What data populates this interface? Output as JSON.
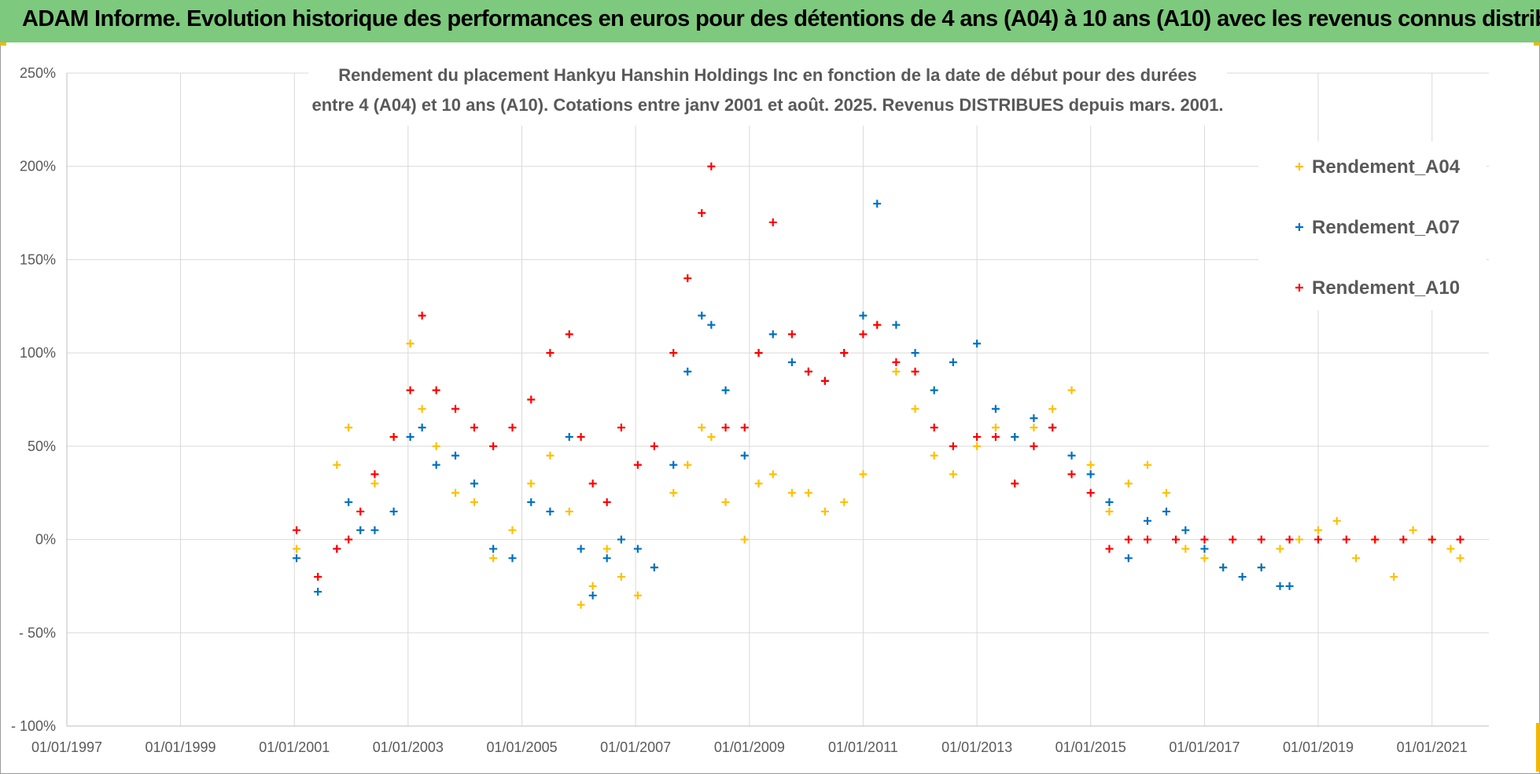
{
  "banner": {
    "title": "ADAM Informe. Evolution historique des performances en euros pour des détentions de 4 ans (A04) à 10 ans (A10) avec les revenus connus distribués"
  },
  "colors": {
    "banner_bg": "#7dc97d",
    "A04": "#ffc000",
    "A07": "#0070c0",
    "A10": "#ff0000",
    "grid": "#d9d9d9",
    "text": "#595959"
  },
  "chart_data": {
    "type": "scatter",
    "title_lines": [
      "Rendement du placement Hankyu Hanshin Holdings Inc en fonction de la date de début pour des durées",
      "entre 4 (A04) et 10 ans (A10). Cotations entre janv 2001 et août. 2025. Revenus DISTRIBUES depuis mars. 2001."
    ],
    "x_axis": {
      "type": "date",
      "range": [
        "1997-01-01",
        "2022-01-01"
      ],
      "tick_labels": [
        "01/01/1997",
        "01/01/1999",
        "01/01/2001",
        "01/01/2003",
        "01/01/2005",
        "01/01/2007",
        "01/01/2009",
        "01/01/2011",
        "01/01/2013",
        "01/01/2015",
        "01/01/2017",
        "01/01/2019",
        "01/01/2021"
      ],
      "tick_dates": [
        "1997-01-01",
        "1999-01-01",
        "2001-01-01",
        "2003-01-01",
        "2005-01-01",
        "2007-01-01",
        "2009-01-01",
        "2011-01-01",
        "2013-01-01",
        "2015-01-01",
        "2017-01-01",
        "2019-01-01",
        "2021-01-01"
      ]
    },
    "y_axis": {
      "unit": "%",
      "range": [
        -100,
        250
      ],
      "tick_values": [
        -100,
        -50,
        0,
        50,
        100,
        150,
        200,
        250
      ],
      "tick_labels": [
        "- 100%",
        "- 50%",
        "0%",
        "50%",
        "100%",
        "150%",
        "200%",
        "250%"
      ]
    },
    "grid": true,
    "marker": "+",
    "legend": {
      "position": "right",
      "entries": [
        "Rendement_A04",
        "Rendement_A07",
        "Rendement_A10"
      ]
    },
    "series": [
      {
        "name": "Rendement_A04",
        "color": "#ffc000",
        "x": [
          "2001-01-15",
          "2001-06-01",
          "2001-10-01",
          "2001-12-15",
          "2002-03-01",
          "2002-06-01",
          "2002-10-01",
          "2003-01-15",
          "2003-04-01",
          "2003-07-01",
          "2003-11-01",
          "2004-03-01",
          "2004-07-01",
          "2004-11-01",
          "2005-03-01",
          "2005-07-01",
          "2005-11-01",
          "2006-01-15",
          "2006-04-01",
          "2006-07-01",
          "2006-10-01",
          "2007-01-15",
          "2007-05-01",
          "2007-09-01",
          "2007-12-01",
          "2008-03-01",
          "2008-05-01",
          "2008-08-01",
          "2008-12-01",
          "2009-03-01",
          "2009-06-01",
          "2009-10-01",
          "2010-01-15",
          "2010-05-01",
          "2010-09-01",
          "2011-01-01",
          "2011-04-01",
          "2011-08-01",
          "2011-12-01",
          "2012-04-01",
          "2012-08-01",
          "2013-01-01",
          "2013-05-01",
          "2013-09-01",
          "2014-01-01",
          "2014-05-01",
          "2014-09-01",
          "2015-01-01",
          "2015-05-01",
          "2015-09-01",
          "2016-01-01",
          "2016-05-01",
          "2016-09-01",
          "2017-01-01",
          "2017-05-01",
          "2017-09-01",
          "2018-01-01",
          "2018-05-01",
          "2018-09-01",
          "2019-01-01",
          "2019-05-01",
          "2019-09-01",
          "2020-01-01",
          "2020-05-01",
          "2020-09-01",
          "2021-01-01",
          "2021-05-01",
          "2021-07-01"
        ],
        "y": [
          -5,
          -20,
          40,
          60,
          5,
          30,
          55,
          105,
          70,
          50,
          25,
          20,
          -10,
          5,
          30,
          45,
          15,
          -35,
          -25,
          -5,
          -20,
          -30,
          -15,
          25,
          40,
          60,
          55,
          20,
          0,
          30,
          35,
          25,
          25,
          15,
          20,
          35,
          115,
          90,
          70,
          45,
          35,
          50,
          60,
          55,
          60,
          70,
          80,
          40,
          15,
          30,
          40,
          25,
          -5,
          -10,
          -15,
          -20,
          -15,
          -5,
          0,
          5,
          10,
          -10,
          0,
          -20,
          5,
          0,
          -5,
          -10
        ]
      },
      {
        "name": "Rendement_A07",
        "color": "#0070c0",
        "x": [
          "2001-01-15",
          "2001-06-01",
          "2001-10-01",
          "2001-12-15",
          "2002-03-01",
          "2002-06-01",
          "2002-10-01",
          "2003-01-15",
          "2003-04-01",
          "2003-07-01",
          "2003-11-01",
          "2004-03-01",
          "2004-07-01",
          "2004-11-01",
          "2005-03-01",
          "2005-07-01",
          "2005-11-01",
          "2006-01-15",
          "2006-04-01",
          "2006-07-01",
          "2006-10-01",
          "2007-01-15",
          "2007-05-01",
          "2007-09-01",
          "2007-12-01",
          "2008-03-01",
          "2008-05-01",
          "2008-08-01",
          "2008-12-01",
          "2009-03-01",
          "2009-06-01",
          "2009-10-01",
          "2010-01-15",
          "2010-05-01",
          "2010-09-01",
          "2011-01-01",
          "2011-04-01",
          "2011-08-01",
          "2011-12-01",
          "2012-04-01",
          "2012-08-01",
          "2013-01-01",
          "2013-05-01",
          "2013-09-01",
          "2014-01-01",
          "2014-05-01",
          "2014-09-01",
          "2015-01-01",
          "2015-05-01",
          "2015-09-01",
          "2016-01-01",
          "2016-05-01",
          "2016-09-01",
          "2017-01-01",
          "2017-05-01",
          "2017-09-01",
          "2018-01-01",
          "2018-05-01",
          "2018-07-01"
        ],
        "y": [
          -10,
          -28,
          -5,
          20,
          5,
          5,
          15,
          55,
          60,
          40,
          45,
          30,
          -5,
          -10,
          20,
          15,
          55,
          -5,
          -30,
          -10,
          0,
          -5,
          -15,
          40,
          90,
          120,
          115,
          80,
          45,
          100,
          110,
          95,
          90,
          85,
          100,
          120,
          180,
          115,
          100,
          80,
          95,
          105,
          70,
          55,
          65,
          60,
          45,
          35,
          20,
          -10,
          10,
          15,
          5,
          -5,
          -15,
          -20,
          -15,
          -25,
          -25
        ]
      },
      {
        "name": "Rendement_A10",
        "color": "#ff0000",
        "x": [
          "2001-01-15",
          "2001-06-01",
          "2001-10-01",
          "2001-12-15",
          "2002-03-01",
          "2002-06-01",
          "2002-10-01",
          "2003-01-15",
          "2003-04-01",
          "2003-07-01",
          "2003-11-01",
          "2004-03-01",
          "2004-07-01",
          "2004-11-01",
          "2005-03-01",
          "2005-07-01",
          "2005-11-01",
          "2006-01-15",
          "2006-04-01",
          "2006-07-01",
          "2006-10-01",
          "2007-01-15",
          "2007-05-01",
          "2007-09-01",
          "2007-12-01",
          "2008-03-01",
          "2008-05-01",
          "2008-08-01",
          "2008-12-01",
          "2009-03-01",
          "2009-06-01",
          "2009-10-01",
          "2010-01-15",
          "2010-05-01",
          "2010-09-01",
          "2011-01-01",
          "2011-04-01",
          "2011-08-01",
          "2011-12-01",
          "2012-04-01",
          "2012-08-01",
          "2013-01-01",
          "2013-05-01",
          "2013-09-01",
          "2014-01-01",
          "2014-05-01",
          "2014-09-01",
          "2015-01-01",
          "2015-05-01",
          "2015-09-01",
          "2016-01-01",
          "2016-07-01",
          "2017-01-01",
          "2017-07-01",
          "2018-01-01",
          "2018-07-01",
          "2019-01-01",
          "2019-07-01",
          "2020-01-01",
          "2020-07-01",
          "2021-01-01",
          "2021-07-01"
        ],
        "y": [
          5,
          -20,
          -5,
          0,
          15,
          35,
          55,
          80,
          120,
          80,
          70,
          60,
          50,
          60,
          75,
          100,
          110,
          55,
          30,
          20,
          60,
          40,
          50,
          100,
          140,
          175,
          200,
          60,
          60,
          100,
          170,
          110,
          90,
          85,
          100,
          110,
          115,
          95,
          90,
          60,
          50,
          55,
          55,
          30,
          50,
          60,
          35,
          25,
          -5,
          0,
          0,
          0,
          0,
          0,
          0,
          0,
          0,
          0,
          0,
          0,
          0,
          0
        ]
      }
    ]
  }
}
